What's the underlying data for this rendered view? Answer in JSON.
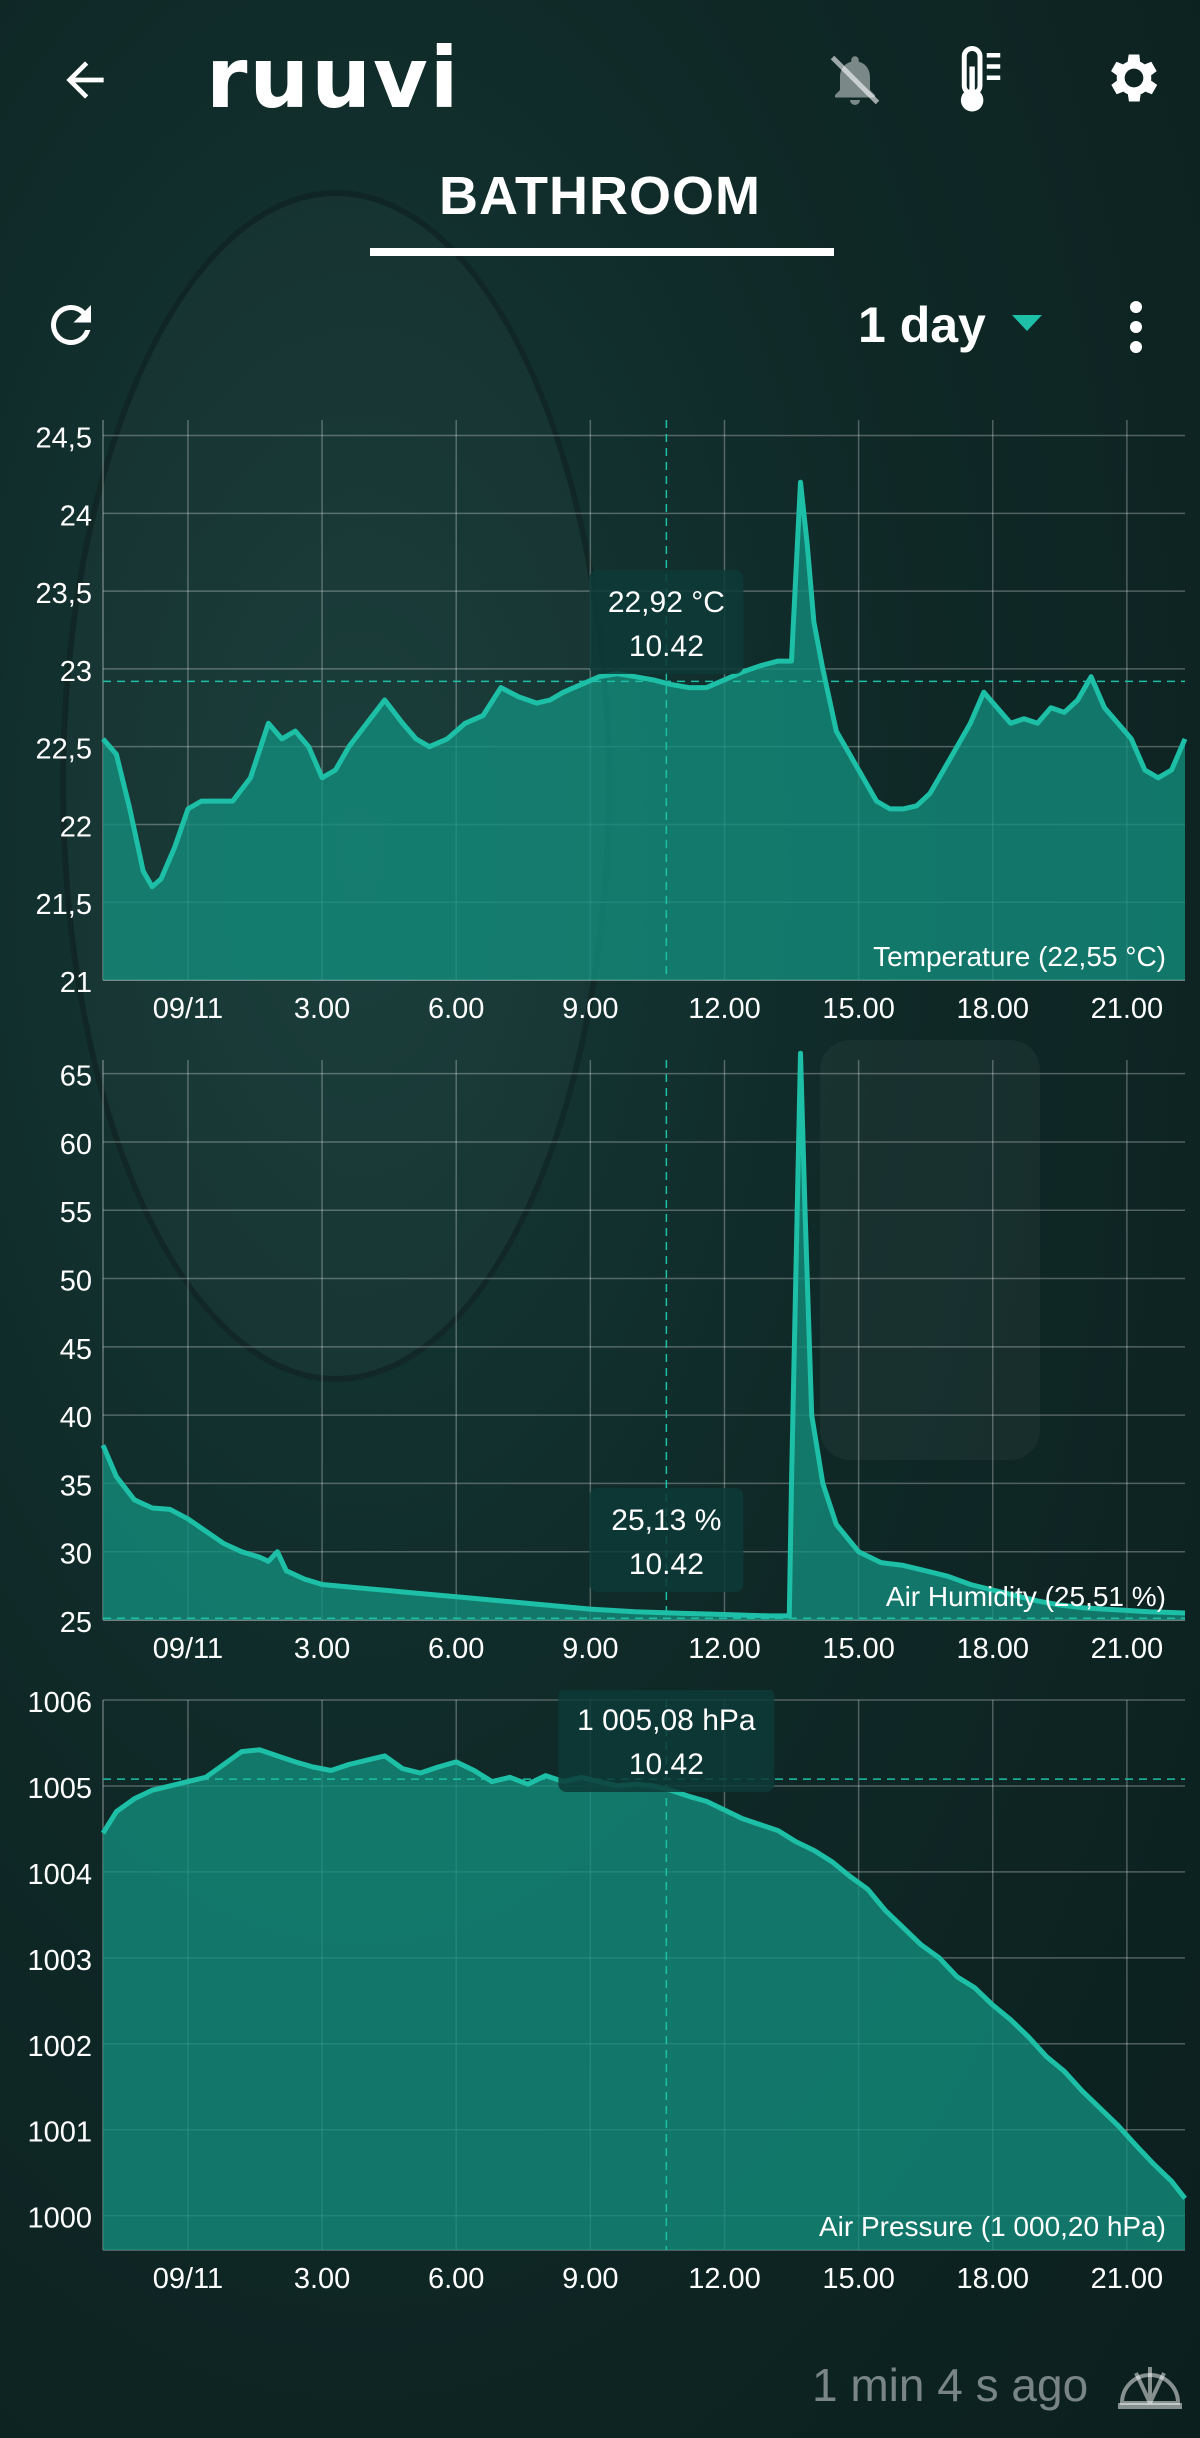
{
  "app": {
    "logo_text": "ruuvi"
  },
  "header": {
    "icons": [
      "back-arrow-icon",
      "bell-off-icon",
      "thermometer-icon",
      "gear-icon"
    ]
  },
  "sensor": {
    "name": "BATHROOM"
  },
  "toolbar": {
    "period": "1 day",
    "icons": [
      "refresh-icon",
      "more-vertical-icon",
      "dropdown-triangle-icon"
    ]
  },
  "theme": {
    "accent": "#1dbfa6",
    "fill": "#138e7e",
    "grid": "#ffffff"
  },
  "charts": [
    {
      "label": "Temperature (22,55 °C)",
      "tooltip_value": "22,92 °C",
      "tooltip_time": "10.42",
      "y_ticks": [
        "24,5",
        "24",
        "23,5",
        "23",
        "22,5",
        "22",
        "21,5",
        "21"
      ],
      "x_ticks": [
        "09/11",
        "3.00",
        "6.00",
        "9.00",
        "12.00",
        "15.00",
        "18.00",
        "21.00"
      ]
    },
    {
      "label": "Air Humidity (25,51 %)",
      "tooltip_value": "25,13 %",
      "tooltip_time": "10.42",
      "y_ticks": [
        "65",
        "60",
        "55",
        "50",
        "45",
        "40",
        "35",
        "30",
        "25"
      ],
      "x_ticks": [
        "09/11",
        "3.00",
        "6.00",
        "9.00",
        "12.00",
        "15.00",
        "18.00",
        "21.00"
      ]
    },
    {
      "label": "Air Pressure (1 000,20 hPa)",
      "tooltip_value": "1 005,08 hPa",
      "tooltip_time": "10.42",
      "y_ticks": [
        "1006",
        "1005",
        "1004",
        "1003",
        "1002",
        "1001",
        "1000"
      ],
      "x_ticks": [
        "09/11",
        "3.00",
        "6.00",
        "9.00",
        "12.00",
        "15.00",
        "18.00",
        "21.00"
      ]
    }
  ],
  "chart_data": [
    {
      "type": "area",
      "title": "",
      "xlabel": "",
      "ylabel": "",
      "x_unit": "hours from midnight 09/11",
      "xlim": [
        -1.9,
        22.3
      ],
      "ylim": [
        21,
        24.6
      ],
      "grid": true,
      "label_position": "bottom-right",
      "crosshair": {
        "x": 10.7,
        "y": 22.92
      },
      "series": [
        {
          "x": [
            -1.9,
            -1.6,
            -1.3,
            -1.0,
            -0.8,
            -0.6,
            -0.3,
            0.0,
            0.3,
            0.6,
            1.0,
            1.4,
            1.8,
            2.1,
            2.4,
            2.7,
            3.0,
            3.3,
            3.6,
            4.0,
            4.4,
            4.8,
            5.1,
            5.4,
            5.8,
            6.2,
            6.6,
            7.0,
            7.4,
            7.8,
            8.1,
            8.4,
            8.8,
            9.2,
            9.6,
            10.0,
            10.4,
            10.8,
            11.2,
            11.6,
            12.0,
            12.4,
            12.8,
            13.2,
            13.5,
            13.7,
            13.85,
            14.0,
            14.2,
            14.5,
            14.8,
            15.1,
            15.4,
            15.7,
            16.0,
            16.3,
            16.6,
            16.9,
            17.2,
            17.5,
            17.8,
            18.1,
            18.4,
            18.7,
            19.0,
            19.3,
            19.6,
            19.9,
            20.2,
            20.5,
            20.8,
            21.1,
            21.4,
            21.7,
            22.0,
            22.3
          ],
          "values": [
            22.55,
            22.45,
            22.1,
            21.7,
            21.6,
            21.65,
            21.85,
            22.1,
            22.15,
            22.15,
            22.15,
            22.3,
            22.65,
            22.55,
            22.6,
            22.5,
            22.3,
            22.35,
            22.5,
            22.65,
            22.8,
            22.65,
            22.55,
            22.5,
            22.55,
            22.65,
            22.7,
            22.88,
            22.82,
            22.78,
            22.8,
            22.85,
            22.9,
            22.95,
            22.97,
            22.95,
            22.93,
            22.9,
            22.88,
            22.88,
            22.93,
            22.98,
            23.02,
            23.05,
            23.05,
            24.2,
            23.8,
            23.3,
            23.0,
            22.6,
            22.45,
            22.3,
            22.15,
            22.1,
            22.1,
            22.12,
            22.2,
            22.35,
            22.5,
            22.65,
            22.85,
            22.75,
            22.65,
            22.68,
            22.65,
            22.75,
            22.72,
            22.8,
            22.95,
            22.75,
            22.65,
            22.55,
            22.35,
            22.3,
            22.35,
            22.55
          ]
        }
      ]
    },
    {
      "type": "area",
      "title": "",
      "xlabel": "",
      "ylabel": "",
      "x_unit": "hours from midnight 09/11",
      "xlim": [
        -1.9,
        22.3
      ],
      "ylim": [
        25,
        66
      ],
      "grid": true,
      "label_position": "bottom-right",
      "crosshair": {
        "x": 10.7,
        "y": 25.13
      },
      "series": [
        {
          "x": [
            -1.9,
            -1.6,
            -1.2,
            -0.8,
            -0.4,
            0.0,
            0.4,
            0.8,
            1.2,
            1.6,
            1.8,
            2.0,
            2.2,
            2.6,
            3.0,
            4.0,
            5.0,
            6.0,
            7.0,
            8.0,
            9.0,
            10.0,
            11.0,
            12.0,
            13.0,
            13.45,
            13.5,
            13.7,
            13.8,
            13.95,
            14.2,
            14.5,
            15.0,
            15.5,
            16.0,
            16.5,
            17.0,
            17.5,
            18.0,
            18.5,
            19.0,
            19.5,
            20.0,
            20.5,
            21.0,
            21.5,
            22.0,
            22.3
          ],
          "values": [
            37.8,
            35.5,
            33.8,
            33.2,
            33.1,
            32.4,
            31.5,
            30.6,
            30.0,
            29.6,
            29.3,
            30.0,
            28.6,
            28.0,
            27.6,
            27.3,
            27.0,
            26.7,
            26.4,
            26.1,
            25.8,
            25.6,
            25.5,
            25.4,
            25.3,
            25.3,
            35,
            66.5,
            55,
            40,
            35,
            32,
            30,
            29.2,
            29.0,
            28.6,
            28.2,
            27.6,
            27.2,
            26.8,
            26.4,
            26.1,
            25.9,
            25.8,
            25.7,
            25.6,
            25.55,
            25.51
          ]
        }
      ]
    },
    {
      "type": "area",
      "title": "",
      "xlabel": "",
      "ylabel": "",
      "x_unit": "hours from midnight 09/11",
      "xlim": [
        -1.9,
        22.3
      ],
      "ylim": [
        999.6,
        1006.0
      ],
      "grid": true,
      "label_position": "bottom-right",
      "crosshair": {
        "x": 10.7,
        "y": 1005.08
      },
      "series": [
        {
          "x": [
            -1.9,
            -1.6,
            -1.2,
            -0.8,
            -0.4,
            0.0,
            0.4,
            0.8,
            1.2,
            1.6,
            2.0,
            2.4,
            2.8,
            3.2,
            3.6,
            4.0,
            4.4,
            4.8,
            5.2,
            5.6,
            6.0,
            6.4,
            6.8,
            7.2,
            7.6,
            8.0,
            8.4,
            8.8,
            9.2,
            9.6,
            10.0,
            10.4,
            10.8,
            11.2,
            11.6,
            12.0,
            12.4,
            12.8,
            13.2,
            13.6,
            14.0,
            14.4,
            14.8,
            15.2,
            15.6,
            16.0,
            16.4,
            16.8,
            17.2,
            17.6,
            18.0,
            18.4,
            18.8,
            19.2,
            19.6,
            20.0,
            20.4,
            20.8,
            21.2,
            21.6,
            22.0,
            22.3
          ],
          "values": [
            1004.45,
            1004.7,
            1004.85,
            1004.95,
            1005.0,
            1005.05,
            1005.1,
            1005.25,
            1005.4,
            1005.42,
            1005.35,
            1005.28,
            1005.22,
            1005.18,
            1005.25,
            1005.3,
            1005.35,
            1005.2,
            1005.15,
            1005.22,
            1005.28,
            1005.18,
            1005.05,
            1005.1,
            1005.02,
            1005.12,
            1005.05,
            1005.1,
            1005.05,
            1005.0,
            1005.02,
            1005.0,
            1004.95,
            1004.88,
            1004.82,
            1004.72,
            1004.62,
            1004.55,
            1004.48,
            1004.35,
            1004.25,
            1004.12,
            1003.95,
            1003.8,
            1003.55,
            1003.35,
            1003.15,
            1003.0,
            1002.78,
            1002.65,
            1002.45,
            1002.28,
            1002.08,
            1001.85,
            1001.68,
            1001.45,
            1001.25,
            1001.05,
            1000.82,
            1000.6,
            1000.4,
            1000.2
          ]
        }
      ]
    }
  ],
  "status": {
    "last_updated": "1 min 4 s ago",
    "icon": "gateway-icon"
  }
}
